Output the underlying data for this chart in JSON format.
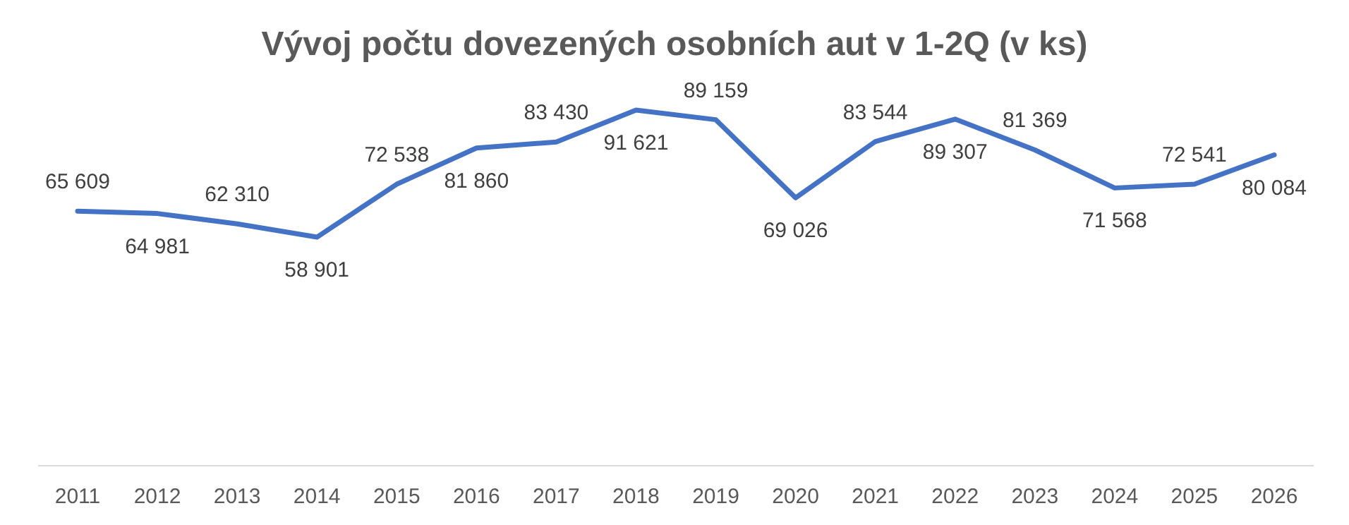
{
  "chart_data": {
    "type": "line",
    "title": "Vývoj počtu dovezených osobních aut v 1-2Q (v ks)",
    "categories": [
      "2011",
      "2012",
      "2013",
      "2014",
      "2015",
      "2016",
      "2017",
      "2018",
      "2019",
      "2020",
      "2021",
      "2022",
      "2023",
      "2024",
      "2025",
      "2026"
    ],
    "values": [
      65609,
      64981,
      62310,
      58901,
      72538,
      81860,
      83430,
      91621,
      89159,
      69026,
      83544,
      89307,
      81369,
      71568,
      72541,
      80084
    ],
    "color": "#4472c4",
    "data_labels": true,
    "marker": "none",
    "line_style": "solid"
  }
}
